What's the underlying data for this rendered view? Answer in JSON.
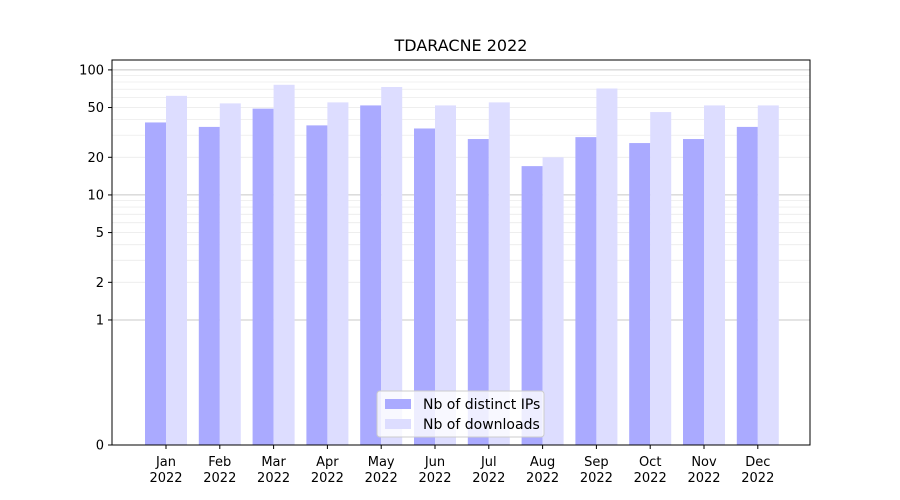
{
  "chart_data": {
    "type": "bar",
    "title": "TDARACNE 2022",
    "xlabel": "",
    "ylabel": "",
    "yscale": "symlog",
    "ylim": [
      0,
      120
    ],
    "yticks": [
      0,
      1,
      2,
      5,
      10,
      20,
      50,
      100
    ],
    "grid": "horizontal",
    "legend_position": "bottom-center",
    "categories": [
      "Jan\n2022",
      "Feb\n2022",
      "Mar\n2022",
      "Apr\n2022",
      "May\n2022",
      "Jun\n2022",
      "Jul\n2022",
      "Aug\n2022",
      "Sep\n2022",
      "Oct\n2022",
      "Nov\n2022",
      "Dec\n2022"
    ],
    "series": [
      {
        "name": "Nb of distinct IPs",
        "color": "#aaaaff",
        "values": [
          38,
          35,
          49,
          36,
          52,
          34,
          28,
          17,
          29,
          26,
          28,
          35
        ]
      },
      {
        "name": "Nb of downloads",
        "color": "#ddddff",
        "values": [
          62,
          54,
          76,
          55,
          73,
          52,
          55,
          20,
          71,
          46,
          52,
          52
        ]
      }
    ]
  }
}
